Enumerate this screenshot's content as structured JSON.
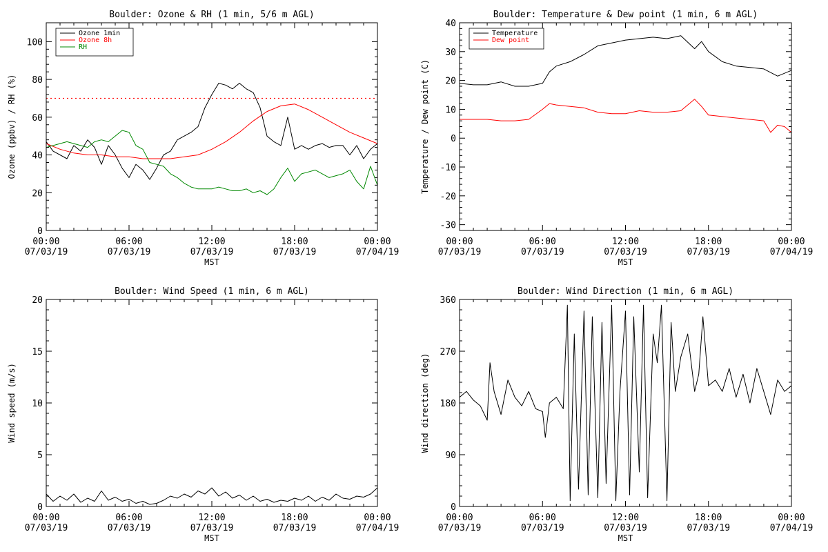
{
  "chart_data": [
    {
      "id": "ozone_rh",
      "type": "line",
      "title": "Boulder: Ozone & RH (1 min, 5/6 m AGL)",
      "xlabel": "MST",
      "ylabel": "Ozone (ppbv) / RH (%)",
      "xlim": [
        0,
        24
      ],
      "ylim": [
        0,
        110
      ],
      "yticks": [
        0,
        20,
        40,
        60,
        80,
        100
      ],
      "xticks": [
        {
          "time": "00:00",
          "date": "07/03/19"
        },
        {
          "time": "06:00",
          "date": "07/03/19"
        },
        {
          "time": "12:00",
          "date": "07/03/19"
        },
        {
          "time": "18:00",
          "date": "07/03/19"
        },
        {
          "time": "00:00",
          "date": "07/04/19"
        }
      ],
      "legend_position": "top-left",
      "reference_line": {
        "y": 70,
        "color": "#ff0000",
        "style": "dotted"
      },
      "series": [
        {
          "name": "Ozone 1min",
          "color": "#000000",
          "x": [
            0,
            0.5,
            1,
            1.5,
            2,
            2.5,
            3,
            3.5,
            4,
            4.5,
            5,
            5.5,
            6,
            6.5,
            7,
            7.5,
            8,
            8.5,
            9,
            9.5,
            10,
            10.5,
            11,
            11.5,
            12,
            12.5,
            13,
            13.5,
            14,
            14.5,
            15,
            15.5,
            16,
            16.5,
            17,
            17.5,
            18,
            18.5,
            19,
            19.5,
            20,
            20.5,
            21,
            21.5,
            22,
            22.5,
            23,
            23.5,
            24
          ],
          "values": [
            47,
            42,
            40,
            38,
            45,
            42,
            48,
            44,
            35,
            45,
            40,
            33,
            28,
            35,
            32,
            27,
            33,
            40,
            42,
            48,
            50,
            52,
            55,
            65,
            72,
            78,
            77,
            75,
            78,
            75,
            73,
            65,
            50,
            47,
            45,
            60,
            43,
            45,
            43,
            45,
            46,
            44,
            45,
            45,
            40,
            45,
            38,
            43,
            46
          ]
        },
        {
          "name": "Ozone 8h",
          "color": "#ff0000",
          "x": [
            0,
            1,
            2,
            3,
            4,
            5,
            6,
            7,
            8,
            9,
            10,
            11,
            12,
            13,
            14,
            15,
            16,
            17,
            18,
            19,
            20,
            21,
            22,
            23,
            24
          ],
          "values": [
            46,
            43,
            41,
            40,
            40,
            39,
            39,
            38,
            38,
            38,
            39,
            40,
            43,
            47,
            52,
            58,
            63,
            66,
            67,
            64,
            60,
            56,
            52,
            49,
            46
          ]
        },
        {
          "name": "RH",
          "color": "#008800",
          "x": [
            0,
            0.5,
            1,
            1.5,
            2,
            2.5,
            3,
            3.5,
            4,
            4.5,
            5,
            5.5,
            6,
            6.5,
            7,
            7.5,
            8,
            8.5,
            9,
            9.5,
            10,
            10.5,
            11,
            11.5,
            12,
            12.5,
            13,
            13.5,
            14,
            14.5,
            15,
            15.5,
            16,
            16.5,
            17,
            17.5,
            18,
            18.5,
            19,
            19.5,
            20,
            20.5,
            21,
            21.5,
            22,
            22.5,
            23,
            23.5,
            24
          ],
          "values": [
            44,
            45,
            46,
            47,
            46,
            45,
            44,
            47,
            48,
            47,
            50,
            53,
            52,
            45,
            43,
            36,
            35,
            34,
            30,
            28,
            25,
            23,
            22,
            22,
            22,
            23,
            22,
            21,
            21,
            22,
            20,
            21,
            19,
            22,
            28,
            33,
            26,
            30,
            31,
            32,
            30,
            28,
            29,
            30,
            32,
            26,
            22,
            34,
            24
          ]
        }
      ]
    },
    {
      "id": "temp_dew",
      "type": "line",
      "title": "Boulder: Temperature & Dew point (1 min, 6 m AGL)",
      "xlabel": "MST",
      "ylabel": "Temperature / Dew point (C)",
      "xlim": [
        0,
        24
      ],
      "ylim": [
        -32,
        40
      ],
      "yticks": [
        -30,
        -20,
        -10,
        0,
        10,
        20,
        30,
        40
      ],
      "xticks": [
        {
          "time": "00:00",
          "date": "07/03/19"
        },
        {
          "time": "06:00",
          "date": "07/03/19"
        },
        {
          "time": "12:00",
          "date": "07/03/19"
        },
        {
          "time": "18:00",
          "date": "07/03/19"
        },
        {
          "time": "00:00",
          "date": "07/04/19"
        }
      ],
      "legend_position": "top-left",
      "series": [
        {
          "name": "Temperature",
          "color": "#000000",
          "x": [
            0,
            1,
            2,
            3,
            4,
            5,
            6,
            6.5,
            7,
            8,
            9,
            10,
            11,
            12,
            13,
            14,
            15,
            16,
            17,
            17.5,
            18,
            19,
            20,
            21,
            22,
            23,
            24
          ],
          "values": [
            19,
            18.5,
            18.5,
            19.5,
            18,
            18,
            19,
            23,
            25,
            26.5,
            29,
            32,
            33,
            34,
            34.5,
            35,
            34.5,
            35.5,
            31,
            33.5,
            30,
            26.5,
            25,
            24.5,
            24,
            21.5,
            23.5
          ]
        },
        {
          "name": "Dew point",
          "color": "#ff0000",
          "x": [
            0,
            1,
            2,
            3,
            4,
            5,
            6,
            6.5,
            7,
            8,
            9,
            10,
            11,
            12,
            13,
            14,
            15,
            16,
            17,
            17.5,
            18,
            19,
            20,
            21,
            22,
            22.5,
            23,
            23.5,
            24
          ],
          "values": [
            6.5,
            6.5,
            6.5,
            6,
            6,
            6.5,
            10,
            12,
            11.5,
            11,
            10.5,
            9,
            8.5,
            8.5,
            9.5,
            9,
            9,
            9.5,
            13.5,
            11,
            8,
            7.5,
            7,
            6.5,
            6,
            2,
            4.5,
            4,
            2
          ]
        }
      ]
    },
    {
      "id": "wind_speed",
      "type": "line",
      "title": "Boulder: Wind Speed (1 min, 6 m AGL)",
      "xlabel": "MST",
      "ylabel": "Wind speed (m/s)",
      "xlim": [
        0,
        24
      ],
      "ylim": [
        0,
        20
      ],
      "yticks": [
        0,
        5,
        10,
        15,
        20
      ],
      "xticks": [
        {
          "time": "00:00",
          "date": "07/03/19"
        },
        {
          "time": "06:00",
          "date": "07/03/19"
        },
        {
          "time": "12:00",
          "date": "07/03/19"
        },
        {
          "time": "18:00",
          "date": "07/03/19"
        },
        {
          "time": "00:00",
          "date": "07/04/19"
        }
      ],
      "series": [
        {
          "name": "",
          "color": "#000000",
          "x": [
            0,
            0.5,
            1,
            1.5,
            2,
            2.5,
            3,
            3.5,
            4,
            4.5,
            5,
            5.5,
            6,
            6.5,
            7,
            7.5,
            8,
            8.5,
            9,
            9.5,
            10,
            10.5,
            11,
            11.5,
            12,
            12.5,
            13,
            13.5,
            14,
            14.5,
            15,
            15.5,
            16,
            16.5,
            17,
            17.5,
            18,
            18.5,
            19,
            19.5,
            20,
            20.5,
            21,
            21.5,
            22,
            22.5,
            23,
            23.5,
            24
          ],
          "values": [
            1.2,
            0.5,
            1.0,
            0.6,
            1.2,
            0.4,
            0.8,
            0.5,
            1.5,
            0.6,
            0.9,
            0.5,
            0.7,
            0.3,
            0.5,
            0.2,
            0.3,
            0.6,
            1.0,
            0.8,
            1.2,
            0.9,
            1.5,
            1.2,
            1.8,
            1.0,
            1.4,
            0.8,
            1.1,
            0.6,
            1.0,
            0.5,
            0.7,
            0.4,
            0.6,
            0.5,
            0.8,
            0.6,
            1.0,
            0.5,
            0.9,
            0.6,
            1.2,
            0.8,
            0.7,
            1.0,
            0.9,
            1.2,
            1.8
          ]
        }
      ]
    },
    {
      "id": "wind_dir",
      "type": "line",
      "title": "Boulder: Wind Direction (1 min, 6 m AGL)",
      "xlabel": "MST",
      "ylabel": "Wind direction (deg)",
      "xlim": [
        0,
        24
      ],
      "ylim": [
        0,
        360
      ],
      "yticks": [
        0,
        90,
        180,
        270,
        360
      ],
      "xticks": [
        {
          "time": "00:00",
          "date": "07/03/19"
        },
        {
          "time": "06:00",
          "date": "07/03/19"
        },
        {
          "time": "12:00",
          "date": "07/03/19"
        },
        {
          "time": "18:00",
          "date": "07/03/19"
        },
        {
          "time": "00:00",
          "date": "07/04/19"
        }
      ],
      "series": [
        {
          "name": "",
          "color": "#000000",
          "x": [
            0,
            0.5,
            1,
            1.5,
            2,
            2.2,
            2.5,
            3,
            3.5,
            4,
            4.5,
            5,
            5.5,
            6,
            6.2,
            6.5,
            7,
            7.5,
            7.8,
            8,
            8.3,
            8.6,
            9,
            9.3,
            9.6,
            10,
            10.3,
            10.6,
            11,
            11.3,
            11.6,
            12,
            12.3,
            12.6,
            13,
            13.3,
            13.6,
            14,
            14.3,
            14.6,
            15,
            15.3,
            15.6,
            16,
            16.5,
            17,
            17.3,
            17.6,
            18,
            18.5,
            19,
            19.5,
            20,
            20.5,
            21,
            21.5,
            22,
            22.5,
            23,
            23.5,
            24
          ],
          "values": [
            190,
            200,
            185,
            175,
            150,
            250,
            200,
            160,
            220,
            190,
            175,
            200,
            170,
            165,
            120,
            180,
            190,
            170,
            350,
            10,
            300,
            30,
            340,
            20,
            330,
            15,
            320,
            40,
            350,
            10,
            200,
            340,
            20,
            330,
            60,
            350,
            15,
            300,
            250,
            350,
            10,
            320,
            200,
            260,
            300,
            200,
            230,
            330,
            210,
            220,
            200,
            240,
            190,
            230,
            180,
            240,
            200,
            160,
            220,
            200,
            210
          ]
        }
      ]
    }
  ]
}
